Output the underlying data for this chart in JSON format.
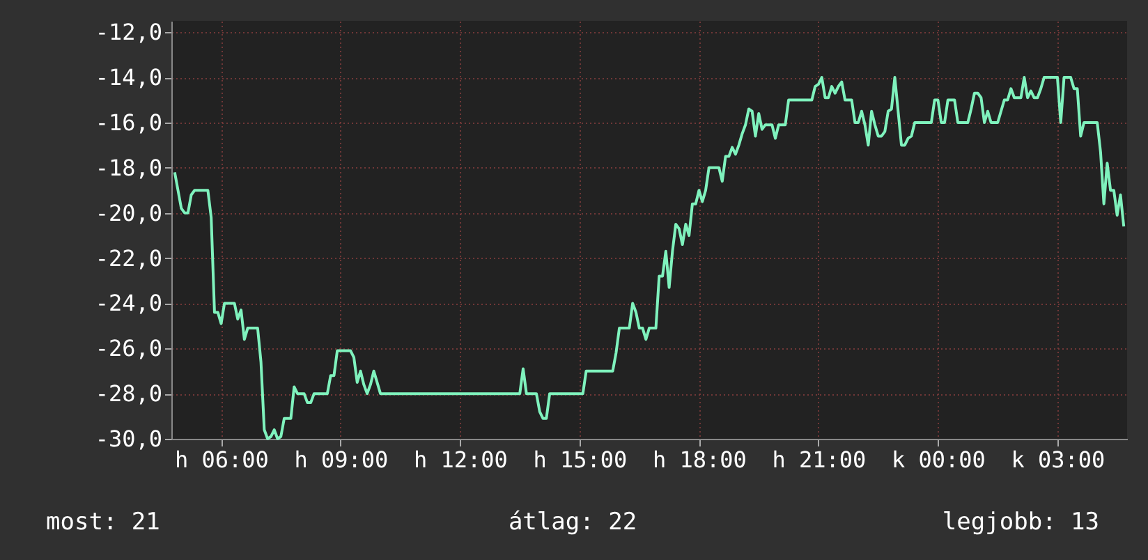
{
  "chart_data": {
    "type": "line",
    "annotations": [
      "most: 21",
      "átlag: 22",
      "legjobb: 13"
    ],
    "categories": [
      null,
      null,
      null,
      null,
      null,
      null,
      null,
      null,
      null,
      null,
      null,
      null,
      null,
      null,
      "h 06:00",
      null,
      null,
      null,
      null,
      null,
      null,
      null,
      null,
      null,
      null,
      null,
      null,
      null,
      null,
      null,
      null,
      null,
      null,
      null,
      null,
      null,
      null,
      null,
      null,
      null,
      null,
      null,
      null,
      null,
      null,
      null,
      null,
      null,
      null,
      null,
      "h 09:00",
      null,
      null,
      null,
      null,
      null,
      null,
      null,
      null,
      null,
      null,
      null,
      null,
      null,
      null,
      null,
      null,
      null,
      null,
      null,
      null,
      null,
      null,
      null,
      null,
      null,
      null,
      null,
      null,
      null,
      null,
      null,
      null,
      null,
      null,
      null,
      "h 12:00",
      null,
      null,
      null,
      null,
      null,
      null,
      null,
      null,
      null,
      null,
      null,
      null,
      null,
      null,
      null,
      null,
      null,
      null,
      null,
      null,
      null,
      null,
      null,
      null,
      null,
      null,
      null,
      null,
      null,
      null,
      null,
      null,
      null,
      null,
      null,
      "h 15:00",
      null,
      null,
      null,
      null,
      null,
      null,
      null,
      null,
      null,
      null,
      null,
      null,
      null,
      null,
      null,
      null,
      null,
      null,
      null,
      null,
      null,
      null,
      null,
      null,
      null,
      null,
      null,
      null,
      null,
      null,
      null,
      null,
      null,
      null,
      null,
      "h 18:00",
      null,
      null,
      null,
      null,
      null,
      null,
      null,
      null,
      null,
      null,
      null,
      null,
      null,
      null,
      null,
      null,
      null,
      null,
      null,
      null,
      null,
      null,
      null,
      null,
      null,
      null,
      null,
      null,
      null,
      null,
      null,
      null,
      null,
      null,
      null,
      "h 21:00",
      null,
      null,
      null,
      null,
      null,
      null,
      null,
      null,
      null,
      null,
      null,
      null,
      null,
      null,
      null,
      null,
      null,
      null,
      null,
      null,
      null,
      null,
      null,
      null,
      null,
      null,
      null,
      null,
      null,
      null,
      null,
      null,
      null,
      null,
      null,
      "k 00:00",
      null,
      null,
      null,
      null,
      null,
      null,
      null,
      null,
      null,
      null,
      null,
      null,
      null,
      null,
      null,
      null,
      null,
      null,
      null,
      null,
      null,
      null,
      null,
      null,
      null,
      null,
      null,
      null,
      null,
      null,
      null,
      null,
      null,
      null,
      null,
      "k 03:00",
      null,
      null,
      null,
      null,
      null,
      null,
      null,
      null,
      null,
      null,
      null,
      null,
      null,
      null,
      null,
      null,
      null,
      null,
      null,
      null
    ],
    "ylim": [
      -30,
      -11.5
    ],
    "yticks": [
      {
        "value": -30,
        "label": "-30,0"
      },
      {
        "value": -28,
        "label": "-28,0"
      },
      {
        "value": -26,
        "label": "-26,0"
      },
      {
        "value": -24,
        "label": "-24,0"
      },
      {
        "value": -22,
        "label": "-22,0"
      },
      {
        "value": -20,
        "label": "-20,0"
      },
      {
        "value": -18,
        "label": "-18,0"
      },
      {
        "value": -16,
        "label": "-16,0"
      },
      {
        "value": -14,
        "label": "-14,0"
      },
      {
        "value": -12,
        "label": "-12,0"
      }
    ],
    "grid": true,
    "series": [
      {
        "color": "#7ff2bd",
        "values": [
          -18.2,
          -19,
          -19.8,
          -20,
          -20,
          -19.2,
          -19,
          -19,
          -19,
          -19,
          -19,
          -20.2,
          -24.4,
          -24.4,
          -24.9,
          -24,
          -24,
          -24,
          -24,
          -24.7,
          -24.3,
          -25.6,
          -25.1,
          -25.1,
          -25.1,
          -25.1,
          -26.6,
          -29.6,
          -30,
          -29.9,
          -29.6,
          -30,
          -29.9,
          -29.1,
          -29.1,
          -29.1,
          -27.7,
          -28,
          -28,
          -28,
          -28.4,
          -28.4,
          -28,
          -28,
          -28,
          -28,
          -28,
          -27.2,
          -27.2,
          -26.1,
          -26.1,
          -26.1,
          -26.1,
          -26.1,
          -26.4,
          -27.5,
          -27,
          -27.6,
          -28,
          -27.6,
          -27,
          -27.5,
          -28,
          -28,
          -28,
          -28,
          -28,
          -28,
          -28,
          -28,
          -28,
          -28,
          -28,
          -28,
          -28,
          -28,
          -28,
          -28,
          -28,
          -28,
          -28,
          -28,
          -28,
          -28,
          -28,
          -28,
          -28,
          -28,
          -28,
          -28,
          -28,
          -28,
          -28,
          -28,
          -28,
          -28,
          -28,
          -28,
          -28,
          -28,
          -28,
          -28,
          -28,
          -28,
          -28,
          -26.9,
          -28,
          -28,
          -28,
          -28,
          -28.8,
          -29.1,
          -29.1,
          -28,
          -28,
          -28,
          -28,
          -28,
          -28,
          -28,
          -28,
          -28,
          -28,
          -28,
          -27,
          -27,
          -27,
          -27,
          -27,
          -27,
          -27,
          -27,
          -27,
          -26.2,
          -25.1,
          -25.1,
          -25.1,
          -25.1,
          -24,
          -24.4,
          -25.1,
          -25.1,
          -25.6,
          -25.1,
          -25.1,
          -25.1,
          -22.8,
          -22.8,
          -21.7,
          -23.3,
          -21.7,
          -20.5,
          -20.7,
          -21.4,
          -20.5,
          -21,
          -19.6,
          -19.6,
          -19,
          -19.5,
          -19,
          -18,
          -18,
          -18,
          -18,
          -18.6,
          -17.5,
          -17.5,
          -17.1,
          -17.4,
          -17,
          -16.5,
          -16.1,
          -15.4,
          -15.5,
          -16.6,
          -15.6,
          -16.3,
          -16.1,
          -16.1,
          -16.1,
          -16.7,
          -16.1,
          -16.1,
          -16.1,
          -15,
          -15,
          -15,
          -15,
          -15,
          -15,
          -15,
          -15,
          -14.4,
          -14.3,
          -14,
          -14.9,
          -14.9,
          -14.4,
          -14.7,
          -14.4,
          -14.2,
          -15,
          -15,
          -15,
          -16,
          -16,
          -15.5,
          -16.1,
          -17,
          -15.5,
          -16.1,
          -16.6,
          -16.6,
          -16.4,
          -15.5,
          -15.4,
          -14,
          -15.5,
          -17,
          -17,
          -16.7,
          -16.6,
          -16,
          -16,
          -16,
          -16,
          -16,
          -16,
          -15,
          -15,
          -16,
          -16,
          -15,
          -15,
          -15,
          -16,
          -16,
          -16,
          -16,
          -15.4,
          -14.7,
          -14.7,
          -14.9,
          -16,
          -15.5,
          -16,
          -16,
          -16,
          -15.5,
          -15,
          -15,
          -14.5,
          -14.9,
          -14.9,
          -14.9,
          -14,
          -14.9,
          -14.6,
          -14.9,
          -14.9,
          -14.5,
          -14,
          -14,
          -14,
          -14,
          -14,
          -16,
          -14,
          -14,
          -14,
          -14.5,
          -14.5,
          -16.6,
          -16,
          -16,
          -16,
          -16,
          -16,
          -17.3,
          -19.6,
          -17.8,
          -19,
          -19,
          -20.1,
          -19.2,
          -20.6
        ]
      }
    ]
  }
}
